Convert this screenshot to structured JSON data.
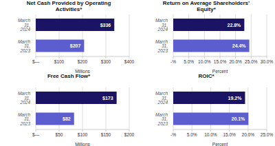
{
  "chart_data": [
    {
      "type": "bar",
      "orientation": "horizontal",
      "title": "Net Cash Provided by Operating\nActivities*",
      "categories": [
        "March 31, 2024",
        "March 31, 2023"
      ],
      "values": [
        336,
        207
      ],
      "value_labels": [
        "$336",
        "$207"
      ],
      "colors": [
        "#1b1464",
        "#5c5ecf"
      ],
      "data_labels": true,
      "xlabel": "Millions",
      "xlim": [
        0,
        400
      ],
      "xticks": [
        {
          "value": 0,
          "label": "$—"
        },
        {
          "value": 100,
          "label": "$100"
        },
        {
          "value": 200,
          "label": "$200"
        },
        {
          "value": 300,
          "label": "$300"
        },
        {
          "value": 400,
          "label": "$400"
        }
      ],
      "grid": true
    },
    {
      "type": "bar",
      "orientation": "horizontal",
      "title": "Return on Average Shareholders’\nEquity*",
      "categories": [
        "March 31, 2024",
        "March 31, 2023"
      ],
      "values": [
        22.8,
        24.4
      ],
      "value_labels": [
        "22.8%",
        "24.4%"
      ],
      "colors": [
        "#1b1464",
        "#5c5ecf"
      ],
      "data_labels": true,
      "xlabel": "Percent",
      "xlim": [
        0,
        30
      ],
      "xticks": [
        {
          "value": 0,
          "label": "-%"
        },
        {
          "value": 5,
          "label": "5.0%"
        },
        {
          "value": 10,
          "label": "10.0%"
        },
        {
          "value": 15,
          "label": "15.0%"
        },
        {
          "value": 20,
          "label": "20.0%"
        },
        {
          "value": 25,
          "label": "25.0%"
        },
        {
          "value": 30,
          "label": "30.0%"
        }
      ],
      "grid": true
    },
    {
      "type": "bar",
      "orientation": "horizontal",
      "title": "Free Cash Flow*",
      "categories": [
        "March 31, 2024",
        "March 31, 2023"
      ],
      "values": [
        173,
        82
      ],
      "value_labels": [
        "$173",
        "$82"
      ],
      "colors": [
        "#1b1464",
        "#5c5ecf"
      ],
      "data_labels": true,
      "xlabel": "Millions",
      "xlim": [
        0,
        200
      ],
      "xticks": [
        {
          "value": 0,
          "label": "$—"
        },
        {
          "value": 50,
          "label": "$50"
        },
        {
          "value": 100,
          "label": "$100"
        },
        {
          "value": 150,
          "label": "$150"
        },
        {
          "value": 200,
          "label": "$200"
        }
      ],
      "grid": true
    },
    {
      "type": "bar",
      "orientation": "horizontal",
      "title": "ROIC*",
      "categories": [
        "March 31, 2024",
        "March 31, 2023"
      ],
      "values": [
        19.2,
        20.1
      ],
      "value_labels": [
        "19.2%",
        "20.1%"
      ],
      "colors": [
        "#1b1464",
        "#5c5ecf"
      ],
      "data_labels": true,
      "xlabel": "Percent",
      "xlim": [
        0,
        25
      ],
      "xticks": [
        {
          "value": 0,
          "label": "-%"
        },
        {
          "value": 5,
          "label": "5.0%"
        },
        {
          "value": 10,
          "label": "10.0%"
        },
        {
          "value": 15,
          "label": "15.0%"
        },
        {
          "value": 20,
          "label": "20.0%"
        },
        {
          "value": 25,
          "label": "25.0%"
        }
      ],
      "grid": true
    }
  ]
}
